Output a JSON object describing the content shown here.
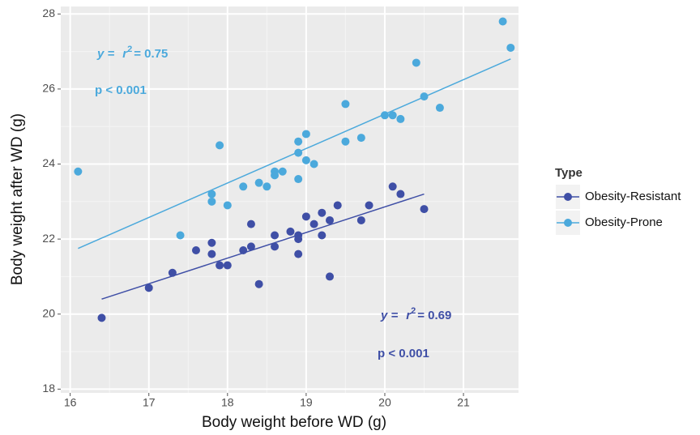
{
  "chart_data": {
    "type": "scatter",
    "x_label": "Body weight before WD (g)",
    "y_label": "Body weight after WD (g)",
    "xlim": [
      15.88,
      21.7
    ],
    "ylim": [
      17.9,
      28.2
    ],
    "xticks": [
      16,
      17,
      18,
      19,
      20,
      21
    ],
    "yticks": [
      18,
      20,
      22,
      24,
      26,
      28
    ],
    "grid": true,
    "legend_title": "Type",
    "legend_position": "right",
    "series": [
      {
        "name": "Obesity-Resistant",
        "color": "#3f4fa6",
        "x": [
          16.4,
          17.0,
          17.3,
          17.6,
          17.8,
          17.8,
          17.9,
          18.0,
          18.2,
          18.3,
          18.3,
          18.4,
          18.6,
          18.6,
          18.8,
          18.9,
          18.9,
          18.9,
          19.0,
          19.1,
          19.2,
          19.2,
          19.3,
          19.3,
          19.4,
          19.7,
          19.8,
          20.1,
          20.2,
          20.5
        ],
        "values": [
          19.9,
          20.7,
          21.1,
          21.7,
          21.9,
          21.6,
          21.3,
          21.3,
          21.7,
          21.8,
          22.4,
          20.8,
          22.1,
          21.8,
          22.2,
          22.1,
          22.0,
          21.6,
          22.6,
          22.4,
          22.7,
          22.1,
          22.5,
          21.0,
          22.9,
          22.5,
          22.9,
          23.4,
          23.2,
          22.8
        ],
        "fit_x": [
          16.4,
          20.5
        ],
        "fit_values": [
          20.4,
          23.2
        ],
        "annotation": {
          "eq": "y =",
          "r": "r",
          "r_exp": "2",
          "r_text": "= 0.69",
          "p_text": "p < 0.001"
        }
      },
      {
        "name": "Obesity-Prone",
        "color": "#4ba9dc",
        "x": [
          16.1,
          17.4,
          17.8,
          17.8,
          17.9,
          18.0,
          18.2,
          18.4,
          18.5,
          18.6,
          18.6,
          18.7,
          18.9,
          18.9,
          18.9,
          19.0,
          19.0,
          19.1,
          19.5,
          19.5,
          19.7,
          20.0,
          20.1,
          20.2,
          20.4,
          20.5,
          20.7,
          21.5,
          21.6
        ],
        "values": [
          23.8,
          22.1,
          23.2,
          23.0,
          24.5,
          22.9,
          23.4,
          23.5,
          23.4,
          23.8,
          23.7,
          23.8,
          24.6,
          24.3,
          23.6,
          24.8,
          24.1,
          24.0,
          25.6,
          24.6,
          24.7,
          25.3,
          25.3,
          25.2,
          26.7,
          25.8,
          25.5,
          27.8,
          27.1
        ],
        "fit_x": [
          16.1,
          21.6
        ],
        "fit_values": [
          21.75,
          26.8
        ],
        "annotation": {
          "eq": "y =",
          "r": "r",
          "r_exp": "2",
          "r_text": "= 0.75",
          "p_text": "p < 0.001"
        }
      }
    ]
  }
}
